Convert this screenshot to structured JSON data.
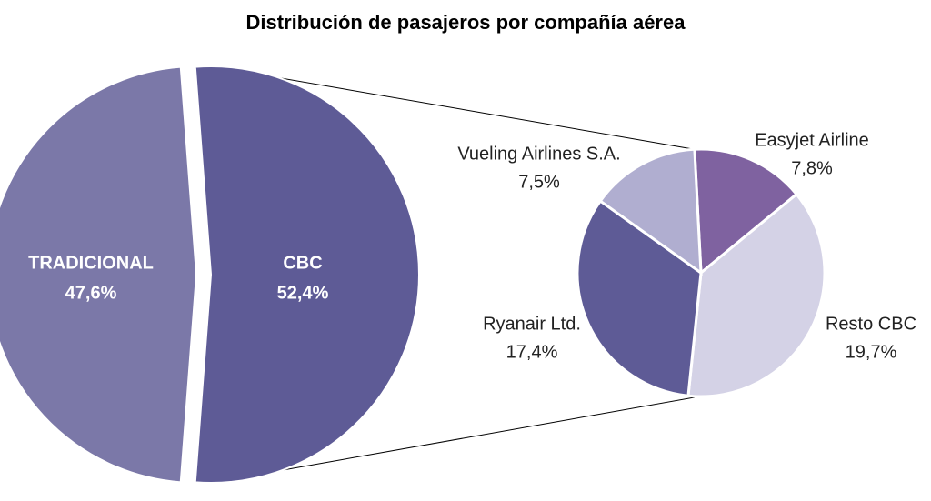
{
  "chart_data": {
    "type": "pie_of_pie",
    "title": "Distribución de pasajeros por compañía aérea",
    "main": {
      "categories": [
        "TRADICIONAL",
        "CBC"
      ],
      "values": [
        47.6,
        52.4
      ],
      "value_labels": [
        "47,6%",
        "52,4%"
      ],
      "colors": [
        "#7b78a8",
        "#5e5b96"
      ]
    },
    "sub": {
      "categories": [
        "Easyjet Airline",
        "Resto CBC",
        "Ryanair Ltd.",
        "Vueling Airlines S.A."
      ],
      "values": [
        7.8,
        19.7,
        17.4,
        7.5
      ],
      "value_labels": [
        "7,8%",
        "19,7%",
        "17,4%",
        "7,5%"
      ],
      "colors": [
        "#7f62a0",
        "#d4d2e6",
        "#5e5b96",
        "#b0aed0"
      ]
    }
  }
}
